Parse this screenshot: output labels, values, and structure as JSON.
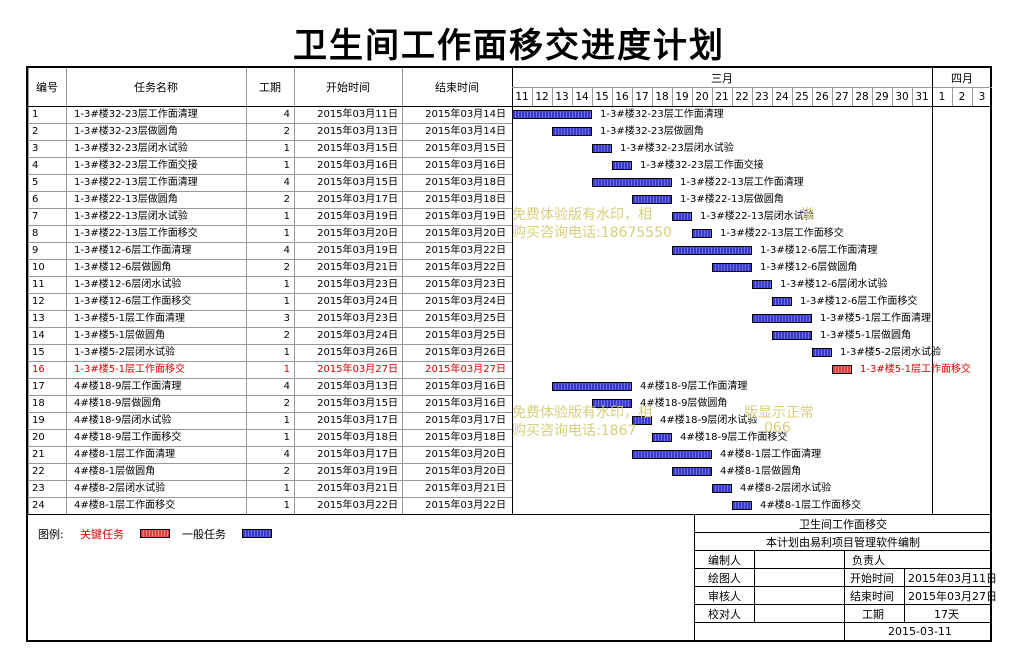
{
  "title": "卫生间工作面移交进度计划",
  "headers": {
    "id": "编号",
    "name": "任务名称",
    "duration": "工期",
    "start": "开始时间",
    "end": "结束时间"
  },
  "months": [
    {
      "label": "三月"
    },
    {
      "label": "四月"
    }
  ],
  "days": [
    "11",
    "12",
    "13",
    "14",
    "15",
    "16",
    "17",
    "18",
    "19",
    "20",
    "21",
    "22",
    "23",
    "24",
    "25",
    "26",
    "27",
    "28",
    "29",
    "30",
    "31",
    "1",
    "2",
    "3"
  ],
  "tasks": [
    {
      "id": "1",
      "name": "1-3#楼32-23层工作面清理",
      "dur": "4",
      "start": "2015年03月11日",
      "end": "2015年03月14日",
      "s": 0,
      "d": 4,
      "crit": false
    },
    {
      "id": "2",
      "name": "1-3#楼32-23层做圆角",
      "dur": "2",
      "start": "2015年03月13日",
      "end": "2015年03月14日",
      "s": 2,
      "d": 2,
      "crit": false
    },
    {
      "id": "3",
      "name": "1-3#楼32-23层闭水试验",
      "dur": "1",
      "start": "2015年03月15日",
      "end": "2015年03月15日",
      "s": 4,
      "d": 1,
      "crit": false
    },
    {
      "id": "4",
      "name": "1-3#楼32-23层工作面交接",
      "dur": "1",
      "start": "2015年03月16日",
      "end": "2015年03月16日",
      "s": 5,
      "d": 1,
      "crit": false
    },
    {
      "id": "5",
      "name": "1-3#楼22-13层工作面清理",
      "dur": "4",
      "start": "2015年03月15日",
      "end": "2015年03月18日",
      "s": 4,
      "d": 4,
      "crit": false
    },
    {
      "id": "6",
      "name": "1-3#楼22-13层做圆角",
      "dur": "2",
      "start": "2015年03月17日",
      "end": "2015年03月18日",
      "s": 6,
      "d": 2,
      "crit": false
    },
    {
      "id": "7",
      "name": "1-3#楼22-13层闭水试验",
      "dur": "1",
      "start": "2015年03月19日",
      "end": "2015年03月19日",
      "s": 8,
      "d": 1,
      "crit": false
    },
    {
      "id": "8",
      "name": "1-3#楼22-13层工作面移交",
      "dur": "1",
      "start": "2015年03月20日",
      "end": "2015年03月20日",
      "s": 9,
      "d": 1,
      "crit": false
    },
    {
      "id": "9",
      "name": "1-3#楼12-6层工作面清理",
      "dur": "4",
      "start": "2015年03月19日",
      "end": "2015年03月22日",
      "s": 8,
      "d": 4,
      "crit": false
    },
    {
      "id": "10",
      "name": "1-3#楼12-6层做圆角",
      "dur": "2",
      "start": "2015年03月21日",
      "end": "2015年03月22日",
      "s": 10,
      "d": 2,
      "crit": false
    },
    {
      "id": "11",
      "name": "1-3#楼12-6层闭水试验",
      "dur": "1",
      "start": "2015年03月23日",
      "end": "2015年03月23日",
      "s": 12,
      "d": 1,
      "crit": false
    },
    {
      "id": "12",
      "name": "1-3#楼12-6层工作面移交",
      "dur": "1",
      "start": "2015年03月24日",
      "end": "2015年03月24日",
      "s": 13,
      "d": 1,
      "crit": false
    },
    {
      "id": "13",
      "name": "1-3#楼5-1层工作面清理",
      "dur": "3",
      "start": "2015年03月23日",
      "end": "2015年03月25日",
      "s": 12,
      "d": 3,
      "crit": false
    },
    {
      "id": "14",
      "name": "1-3#楼5-1层做圆角",
      "dur": "2",
      "start": "2015年03月24日",
      "end": "2015年03月25日",
      "s": 13,
      "d": 2,
      "crit": false
    },
    {
      "id": "15",
      "name": "1-3#楼5-2层闭水试验",
      "dur": "1",
      "start": "2015年03月26日",
      "end": "2015年03月26日",
      "s": 15,
      "d": 1,
      "crit": false
    },
    {
      "id": "16",
      "name": "1-3#楼5-1层工作面移交",
      "dur": "1",
      "start": "2015年03月27日",
      "end": "2015年03月27日",
      "s": 16,
      "d": 1,
      "crit": true
    },
    {
      "id": "17",
      "name": "4#楼18-9层工作面清理",
      "dur": "4",
      "start": "2015年03月13日",
      "end": "2015年03月16日",
      "s": 2,
      "d": 4,
      "crit": false
    },
    {
      "id": "18",
      "name": "4#楼18-9层做圆角",
      "dur": "2",
      "start": "2015年03月15日",
      "end": "2015年03月16日",
      "s": 4,
      "d": 2,
      "crit": false
    },
    {
      "id": "19",
      "name": "4#楼18-9层闭水试验",
      "dur": "1",
      "start": "2015年03月17日",
      "end": "2015年03月17日",
      "s": 6,
      "d": 1,
      "crit": false
    },
    {
      "id": "20",
      "name": "4#楼18-9层工作面移交",
      "dur": "1",
      "start": "2015年03月18日",
      "end": "2015年03月18日",
      "s": 7,
      "d": 1,
      "crit": false
    },
    {
      "id": "21",
      "name": "4#楼8-1层工作面清理",
      "dur": "4",
      "start": "2015年03月17日",
      "end": "2015年03月20日",
      "s": 6,
      "d": 4,
      "crit": false
    },
    {
      "id": "22",
      "name": "4#楼8-1层做圆角",
      "dur": "2",
      "start": "2015年03月19日",
      "end": "2015年03月20日",
      "s": 8,
      "d": 2,
      "crit": false
    },
    {
      "id": "23",
      "name": "4#楼8-2层闭水试验",
      "dur": "1",
      "start": "2015年03月21日",
      "end": "2015年03月21日",
      "s": 10,
      "d": 1,
      "crit": false
    },
    {
      "id": "24",
      "name": "4#楼8-1层工作面移交",
      "dur": "1",
      "start": "2015年03月22日",
      "end": "2015年03月22日",
      "s": 11,
      "d": 1,
      "crit": false
    }
  ],
  "legend": {
    "label": "图例:",
    "critical": "关键任务",
    "normal": "一般任务"
  },
  "watermark": {
    "line1a": "免费体验版有水印，相",
    "line1b": "常",
    "line2a": "购买咨询电话:18675550",
    "line3a": "免费体验版有水印，相",
    "line3b": "版显示正常",
    "line4a": "购买咨询电话:1867",
    "line4b": "066"
  },
  "footer": {
    "project": "卫生间工作面移交",
    "software": "本计划由易利项目管理软件编制",
    "editor": "编制人",
    "owner": "负责人",
    "drawer": "绘图人",
    "start_label": "开始时间",
    "start_val": "2015年03月11日",
    "reviewer": "审核人",
    "end_label": "结束时间",
    "end_val": "2015年03月27日",
    "checker": "校对人",
    "dur_label": "工期",
    "dur_val": "17天",
    "date": "2015-03-11"
  },
  "colors": {
    "normal_bar": "#3a3ac8",
    "critical_bar": "#e04040",
    "critical_text": "#e00000"
  }
}
